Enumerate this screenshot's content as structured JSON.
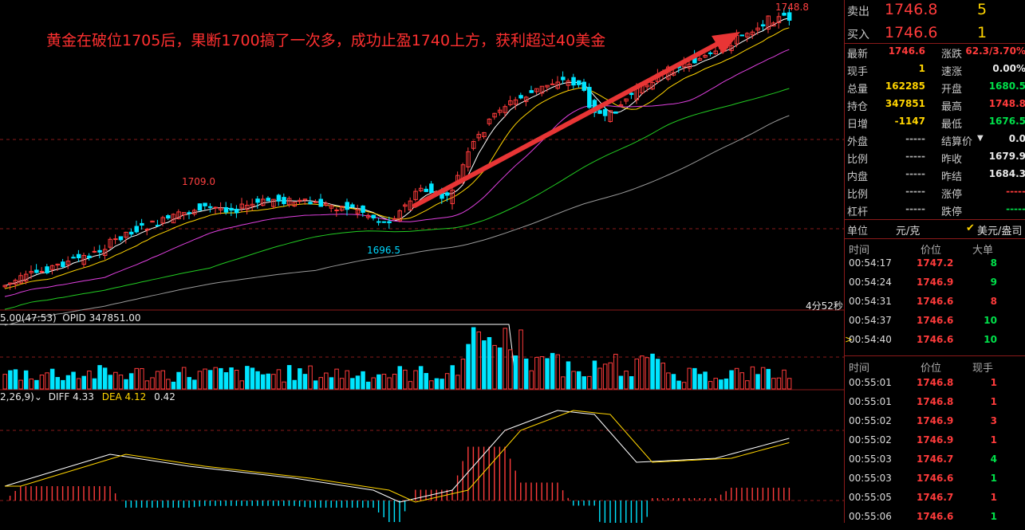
{
  "annotation": {
    "text": "黄金在破位1705后，果断1700搞了一次多，成功止盈1740上方，获利超过40美金",
    "color": "#ff3030"
  },
  "price_labels": {
    "high_right": "1748.8",
    "peak_left": "1709.0",
    "low": "1696.5"
  },
  "countdown": "4分52秒",
  "volume_header": "5.00(47:53)  OPID 347851.00",
  "macd_header": {
    "params": "2,26,9)",
    "diff": "DIFF 4.33",
    "dea": "DEA 4.12",
    "macd": "0.42"
  },
  "colors": {
    "up": "#ff3b3b",
    "down": "#00e5ff",
    "ma5": "#ffffff",
    "ma10": "#ffd400",
    "ma20": "#e040e0",
    "ma40": "#22cc22",
    "ma60": "#999999",
    "arrow": "#e83535",
    "grid": "#8a1a1a"
  },
  "quote": {
    "sell": {
      "label": "卖出",
      "price": "1746.8",
      "qty": "5"
    },
    "buy": {
      "label": "买入",
      "price": "1746.6",
      "qty": "1"
    },
    "rows": [
      {
        "l1": "最新",
        "v1": "1746.6",
        "c1": "red",
        "l2": "涨跌",
        "v2": "62.3/3.70%",
        "c2": "red"
      },
      {
        "l1": "现手",
        "v1": "1",
        "c1": "yellow",
        "l2": "速涨",
        "v2": "0.00%",
        "c2": "white"
      },
      {
        "l1": "总量",
        "v1": "162285",
        "c1": "yellow",
        "l2": "开盘",
        "v2": "1680.5",
        "c2": "green"
      },
      {
        "l1": "持仓",
        "v1": "347851",
        "c1": "yellow",
        "l2": "最高",
        "v2": "1748.8",
        "c2": "red"
      },
      {
        "l1": "日增",
        "v1": "-1147",
        "c1": "yellow",
        "l2": "最低",
        "v2": "1676.5",
        "c2": "green"
      },
      {
        "l1": "外盘",
        "v1": "-----",
        "c1": "gray",
        "l2": "结算价",
        "v2": "0.0",
        "c2": "white"
      },
      {
        "l1": "比例",
        "v1": "-----",
        "c1": "gray",
        "l2": "昨收",
        "v2": "1679.9",
        "c2": "white"
      },
      {
        "l1": "内盘",
        "v1": "-----",
        "c1": "gray",
        "l2": "昨结",
        "v2": "1684.3",
        "c2": "white"
      },
      {
        "l1": "比例",
        "v1": "-----",
        "c1": "gray",
        "l2": "涨停",
        "v2": "-----",
        "c2": "red"
      },
      {
        "l1": "杠杆",
        "v1": "-----",
        "c1": "gray",
        "l2": "跌停",
        "v2": "-----",
        "c2": "green"
      }
    ],
    "unit": {
      "label": "单位",
      "value": "元/克",
      "alt": "美元/盎司"
    }
  },
  "big_orders": {
    "headers": [
      "时间",
      "价位",
      "大单"
    ],
    "rows": [
      {
        "time": "00:54:17",
        "price": "1747.2",
        "qty": "8",
        "pc": "red",
        "qc": "green"
      },
      {
        "time": "00:54:24",
        "price": "1746.9",
        "qty": "9",
        "pc": "red",
        "qc": "green"
      },
      {
        "time": "00:54:31",
        "price": "1746.6",
        "qty": "8",
        "pc": "red",
        "qc": "red"
      },
      {
        "time": "00:54:37",
        "price": "1746.6",
        "qty": "10",
        "pc": "red",
        "qc": "green"
      },
      {
        "time": "00:54:40",
        "price": "1746.6",
        "qty": "10",
        "pc": "red",
        "qc": "green"
      }
    ]
  },
  "ticks": {
    "headers": [
      "时间",
      "价位",
      "现手"
    ],
    "rows": [
      {
        "time": "00:55:01",
        "price": "1746.8",
        "qty": "1",
        "pc": "red",
        "qc": "red"
      },
      {
        "time": "00:55:01",
        "price": "1746.8",
        "qty": "1",
        "pc": "red",
        "qc": "red"
      },
      {
        "time": "00:55:02",
        "price": "1746.9",
        "qty": "3",
        "pc": "red",
        "qc": "red"
      },
      {
        "time": "00:55:02",
        "price": "1746.9",
        "qty": "1",
        "pc": "red",
        "qc": "red"
      },
      {
        "time": "00:55:03",
        "price": "1746.7",
        "qty": "4",
        "pc": "red",
        "qc": "green"
      },
      {
        "time": "00:55:03",
        "price": "1746.6",
        "qty": "1",
        "pc": "red",
        "qc": "green"
      },
      {
        "time": "00:55:05",
        "price": "1746.7",
        "qty": "1",
        "pc": "red",
        "qc": "red"
      },
      {
        "time": "00:55:06",
        "price": "1746.6",
        "qty": "1",
        "pc": "red",
        "qc": "green"
      }
    ]
  }
}
